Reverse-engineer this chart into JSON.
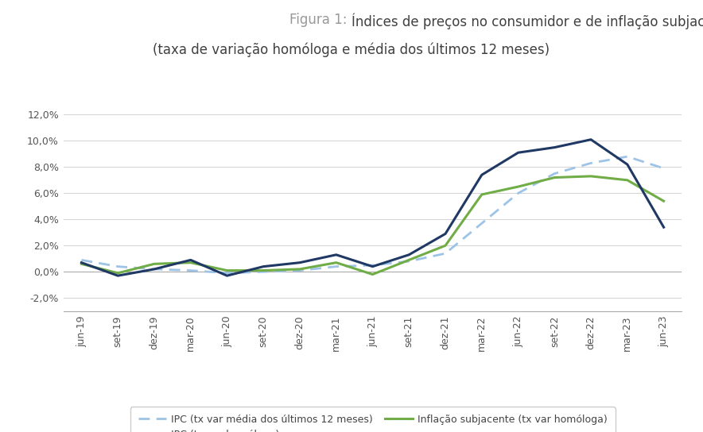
{
  "title_prefix": "Figura 1: ",
  "title_main": "Índices de preços no consumidor e de inflação subjacente",
  "title_sub": "(taxa de variação homóloga e média dos últimos 12 meses)",
  "background_color": "#ffffff",
  "x_labels": [
    "jun-19",
    "set-19",
    "dez-19",
    "mar-20",
    "jun-20",
    "set-20",
    "dez-20",
    "mar-21",
    "jun-21",
    "set-21",
    "dez-21",
    "mar-22",
    "jun-22",
    "set-22",
    "dez-22",
    "mar-23",
    "jun-23"
  ],
  "ipc_homologa": [
    0.007,
    -0.003,
    0.002,
    0.009,
    -0.003,
    0.004,
    0.007,
    0.013,
    0.004,
    0.013,
    0.029,
    0.074,
    0.091,
    0.095,
    0.101,
    0.082,
    0.034
  ],
  "ipc_media12": [
    0.009,
    0.004,
    0.002,
    0.001,
    -0.001,
    0.0,
    0.001,
    0.004,
    0.005,
    0.008,
    0.014,
    0.037,
    0.06,
    0.075,
    0.083,
    0.088,
    0.079
  ],
  "inflacao_sub": [
    0.006,
    -0.001,
    0.006,
    0.007,
    0.001,
    0.001,
    0.002,
    0.007,
    -0.002,
    0.009,
    0.02,
    0.059,
    0.065,
    0.072,
    0.073,
    0.07,
    0.054
  ],
  "color_ipc_homologa": "#1f3864",
  "color_ipc_media12": "#9dc3e6",
  "color_inflacao_sub": "#70ad47",
  "legend_label_media": "IPC (tx var média dos últimos 12 meses)",
  "legend_label_homologa": "IPC (tx var homóloga)",
  "legend_label_sub": "Inflação subjacente (tx var homóloga)",
  "title_fontsize": 12,
  "label_fontsize": 9,
  "tick_fontsize": 9,
  "yticks": [
    -0.02,
    0.0,
    0.02,
    0.04,
    0.06,
    0.08,
    0.1,
    0.12
  ],
  "ylim": [
    -0.03,
    0.135
  ],
  "title_color_prefix": "#999999",
  "title_color_main": "#404040"
}
